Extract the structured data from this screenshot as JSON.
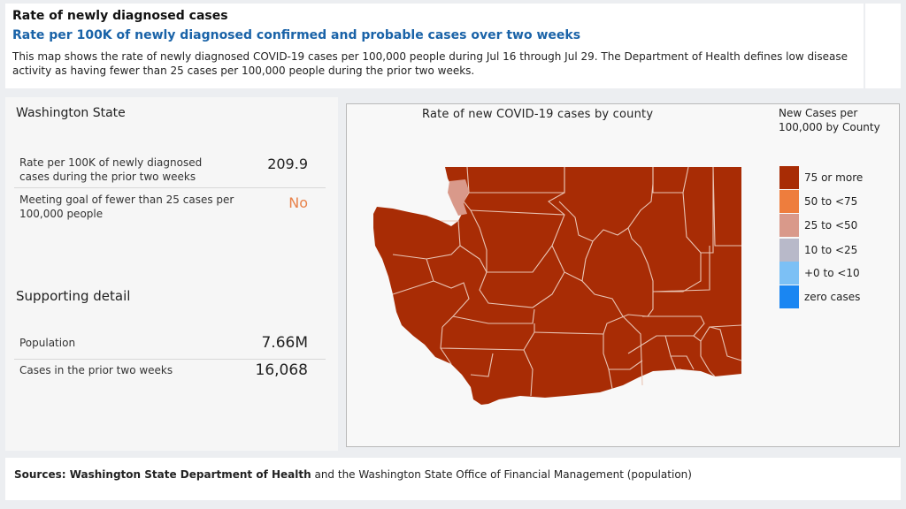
{
  "header": {
    "title": "Rate of newly diagnosed cases",
    "subtitle": "Rate per 100K of newly diagnosed confirmed and probable cases over two weeks",
    "description": "This map shows the rate of newly diagnosed COVID-19 cases per 100,000 people during Jul 16 through Jul 29. The Department of Health defines low disease activity as having fewer than 25 cases per 100,000 people during the prior two weeks."
  },
  "state": {
    "title": "Washington State",
    "metrics": [
      {
        "label": "Rate per 100K of newly diagnosed cases during the prior two weeks",
        "value": "209.9",
        "color": "#222222"
      },
      {
        "label": "Meeting goal of fewer than 25 cases per 100,000 people",
        "value": "No",
        "color": "#e8824a"
      }
    ],
    "support_title": "Supporting detail",
    "details": [
      {
        "label": "Population",
        "value": "7.66M"
      },
      {
        "label": "Cases in the prior two weeks",
        "value": "16,068"
      }
    ]
  },
  "map": {
    "title": "Rate of new COVID-19 cases by county",
    "legend_title": "New Cases per 100,000 by County",
    "legend": [
      {
        "label": "75 or more",
        "color": "#a82c05"
      },
      {
        "label": "50 to <75",
        "color": "#ee7d3d"
      },
      {
        "label": "25 to <50",
        "color": "#d9998a"
      },
      {
        "label": "10 to <25",
        "color": "#b8b9c9"
      },
      {
        "label": "+0 to <10",
        "color": "#7cc0f5"
      },
      {
        "label": "zero cases",
        "color": "#1a86f2"
      }
    ],
    "county_fill": "#a82c05",
    "highlight_fill": "#d9998a"
  },
  "footer": {
    "prefix": "Sources: ",
    "source1": "Washington State Department of Health",
    "middle": " and the Washington State Office of Financial Management (population)"
  }
}
